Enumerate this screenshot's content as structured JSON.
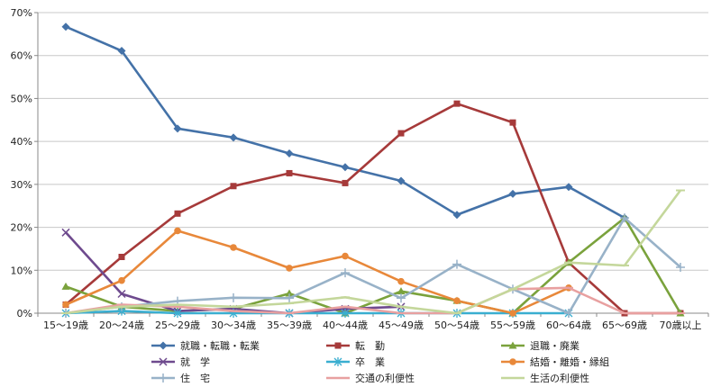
{
  "chart_data": {
    "type": "line",
    "title": "",
    "xlabel": "",
    "ylabel": "",
    "ylim": [
      0,
      70
    ],
    "y_ticks": [
      "0%",
      "10%",
      "20%",
      "30%",
      "40%",
      "50%",
      "60%",
      "70%"
    ],
    "y_tick_values": [
      0,
      10,
      20,
      30,
      40,
      50,
      60,
      70
    ],
    "y_unit": "%",
    "grid": true,
    "legend_position": "bottom",
    "categories": [
      "15～19歳",
      "20～24歳",
      "25～29歳",
      "30～34歳",
      "35～39歳",
      "40～44歳",
      "45～49歳",
      "50～54歳",
      "55～59歳",
      "60～64歳",
      "65～69歳",
      "70歳以上"
    ],
    "series": [
      {
        "name": "就職・転職・転業",
        "color": "#4472a8",
        "marker": "diamond",
        "values": [
          66.7,
          61.1,
          43.0,
          40.9,
          37.2,
          34.0,
          30.8,
          22.9,
          27.8,
          29.4,
          22.2,
          null
        ]
      },
      {
        "name": "転　勤",
        "color": "#a63a3a",
        "marker": "square",
        "values": [
          2.0,
          13.1,
          23.2,
          29.6,
          32.6,
          30.3,
          41.9,
          48.8,
          44.4,
          11.8,
          0.0,
          0.0
        ]
      },
      {
        "name": "退職・廃業",
        "color": "#7aa23c",
        "marker": "triangle",
        "values": [
          6.2,
          1.5,
          0.5,
          1.0,
          4.6,
          0.0,
          5.1,
          2.9,
          0.0,
          11.8,
          22.2,
          0.0
        ]
      },
      {
        "name": "就　学",
        "color": "#6e4a8e",
        "marker": "x",
        "values": [
          18.8,
          4.5,
          0.5,
          1.0,
          0.0,
          1.0,
          1.5,
          null,
          null,
          null,
          null,
          null
        ]
      },
      {
        "name": "卒　業",
        "color": "#3aaed0",
        "marker": "asterisk",
        "values": [
          0.0,
          0.5,
          0.0,
          0.0,
          0.0,
          0.0,
          0.0,
          0.0,
          0.0,
          0.0,
          null,
          null
        ]
      },
      {
        "name": "結婚・離婚・縁組",
        "color": "#e8883a",
        "marker": "circle",
        "values": [
          2.0,
          7.6,
          19.2,
          15.3,
          10.5,
          13.3,
          7.4,
          2.9,
          0.0,
          5.9,
          null,
          null
        ]
      },
      {
        "name": "住　宅",
        "color": "#98b2c8",
        "marker": "plus",
        "values": [
          0.0,
          1.5,
          2.8,
          3.6,
          3.5,
          9.4,
          3.5,
          11.4,
          5.6,
          0.0,
          22.2,
          10.7
        ]
      },
      {
        "name": "交通の利便性",
        "color": "#e8a0a0",
        "marker": "dash",
        "values": [
          0.0,
          2.0,
          1.5,
          0.5,
          0.0,
          1.5,
          0.0,
          0.0,
          5.6,
          5.9,
          0.0,
          0.0
        ]
      },
      {
        "name": "生活の利便性",
        "color": "#c4d79b",
        "marker": "dash",
        "values": [
          0.0,
          1.5,
          2.0,
          1.5,
          2.3,
          3.7,
          1.5,
          0.0,
          5.6,
          11.8,
          11.1,
          28.6
        ]
      }
    ]
  }
}
